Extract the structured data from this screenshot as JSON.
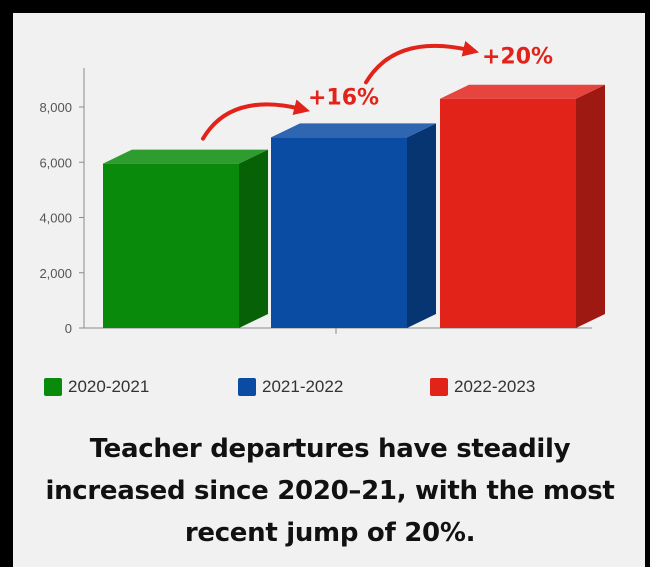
{
  "chart_data": {
    "type": "bar",
    "categories": [
      "2020-2021",
      "2021-2022",
      "2022-2023"
    ],
    "values": [
      5950,
      6900,
      8300
    ],
    "colors": [
      "#0a8a0a",
      "#0a4ba3",
      "#e2231a"
    ],
    "ylim": [
      0,
      8000
    ],
    "yticks": [
      0,
      2000,
      4000,
      6000,
      8000
    ],
    "ytick_labels": [
      "0",
      "2,000",
      "4,000",
      "6,000",
      "8,000"
    ],
    "grid": false,
    "legend_position": "bottom",
    "annotations": [
      {
        "text": "+16%",
        "color": "#e2231a"
      },
      {
        "text": "+20%",
        "color": "#e2231a"
      }
    ]
  },
  "legend": {
    "items": [
      {
        "label": "2020-2021",
        "color": "#0a8a0a"
      },
      {
        "label": "2021-2022",
        "color": "#0a4ba3"
      },
      {
        "label": "2022-2023",
        "color": "#e2231a"
      }
    ]
  },
  "caption": "Teacher departures have steadily increased since 2020–21, with the most recent jump of 20%."
}
